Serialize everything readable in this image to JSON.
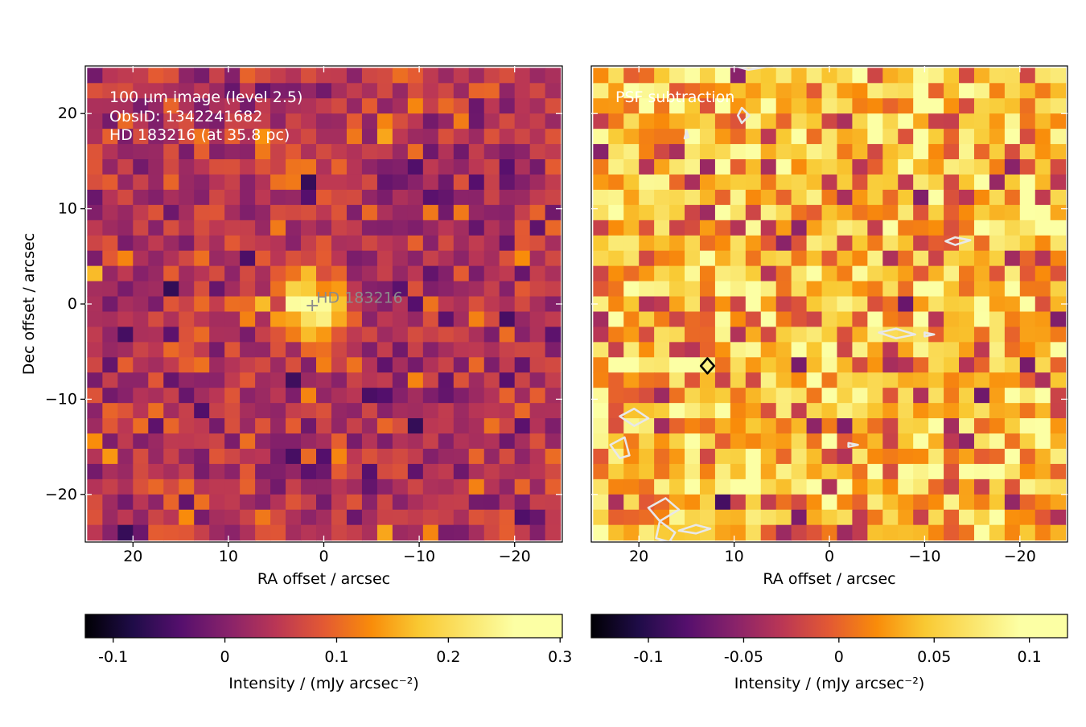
{
  "chart_data": [
    {
      "type": "heatmap",
      "panel": "left",
      "annotation": [
        "100 µm image (level 2.5)",
        "ObsID: 1342241682",
        "HD 183216 (at 35.8 pc)"
      ],
      "marker": {
        "label": "HD 183216",
        "ra": 1.2,
        "dec": -0.2
      },
      "xlabel": "RA offset / arcsec",
      "ylabel": "Dec offset / arcsec",
      "xlim": [
        25,
        -25
      ],
      "ylim": [
        -25,
        25
      ],
      "xticks": [
        20,
        10,
        0,
        -10,
        -20
      ],
      "xticklabels": [
        "20",
        "10",
        "0",
        "−10",
        "−20"
      ],
      "yticks": [
        20,
        10,
        0,
        -10,
        -20
      ],
      "yticklabels": [
        "20",
        "10",
        "0",
        "−10",
        "−20"
      ],
      "grid": {
        "nx": 31,
        "ny": 31,
        "pixel_arcsec": 1.6,
        "source_peak": 0.25,
        "source_width_arcsec": 2.2,
        "noise_level": 0.04,
        "background": 0.04
      },
      "colorbar": {
        "label": "Intensity / (mJy arcsec⁻²)",
        "range": [
          -0.125,
          0.302
        ],
        "ticks": [
          -0.1,
          0,
          0.1,
          0.2,
          0.3
        ],
        "ticklabels": [
          "-0.1",
          "0",
          "0.1",
          "0.2",
          "0.3"
        ],
        "colormap": "inferno"
      }
    },
    {
      "type": "heatmap",
      "panel": "right",
      "annotation": [
        "PSF subtraction"
      ],
      "xlabel": "RA offset / arcsec",
      "xlim": [
        25,
        -25
      ],
      "ylim": [
        -25,
        25
      ],
      "xticks": [
        20,
        10,
        0,
        -10,
        -20
      ],
      "xticklabels": [
        "20",
        "10",
        "0",
        "−10",
        "−20"
      ],
      "grid": {
        "nx": 31,
        "ny": 31,
        "pixel_arcsec": 1.6,
        "noise_level": 0.04,
        "background": 0.035
      },
      "contours": [
        {
          "color": "#000000",
          "points": [
            [
              13.5,
              -6.5
            ],
            [
              12.8,
              -5.7
            ],
            [
              12.1,
              -6.5
            ],
            [
              12.8,
              -7.3
            ]
          ]
        },
        {
          "color": "#e8e8ea",
          "points": [
            [
              9.6,
              19.8
            ],
            [
              9.2,
              20.6
            ],
            [
              8.4,
              19.8
            ],
            [
              9.2,
              19.0
            ]
          ]
        },
        {
          "color": "#e8e8ea",
          "points": [
            [
              -5.2,
              -3.0
            ],
            [
              -7.0,
              -2.6
            ],
            [
              -9.0,
              -3.2
            ],
            [
              -7.0,
              -3.6
            ]
          ]
        },
        {
          "color": "#e8e8ea",
          "points": [
            [
              -12.2,
              6.6
            ],
            [
              -13.2,
              7.0
            ],
            [
              -14.8,
              6.7
            ],
            [
              -13.2,
              6.2
            ]
          ]
        },
        {
          "color": "#e8e8ea",
          "points": [
            [
              22.0,
              -11.8
            ],
            [
              20.5,
              -11.0
            ],
            [
              19.0,
              -12.0
            ],
            [
              20.5,
              -12.8
            ]
          ]
        },
        {
          "color": "#e8e8ea",
          "points": [
            [
              23.0,
              -14.8
            ],
            [
              21.5,
              -14.0
            ],
            [
              21.0,
              -15.9
            ],
            [
              22.0,
              -16.2
            ]
          ]
        },
        {
          "color": "#e8e8ea",
          "points": [
            [
              19.0,
              -21.4
            ],
            [
              17.2,
              -20.4
            ],
            [
              15.8,
              -21.6
            ],
            [
              17.8,
              -22.8
            ]
          ]
        },
        {
          "color": "#e8e8ea",
          "points": [
            [
              17.8,
              -22.8
            ],
            [
              18.2,
              -24.6
            ],
            [
              16.8,
              -25.0
            ],
            [
              16.2,
              -24.0
            ]
          ]
        },
        {
          "color": "#e8e8ea",
          "points": [
            [
              15.8,
              -23.8
            ],
            [
              14.0,
              -23.2
            ],
            [
              12.5,
              -23.6
            ],
            [
              14.0,
              -24.1
            ]
          ]
        },
        {
          "color": "#e8e8ea",
          "points": [
            [
              10.0,
              25.0
            ],
            [
              8.5,
              24.6
            ],
            [
              6.0,
              25.0
            ]
          ]
        },
        {
          "color": "#e8e8ea",
          "points": [
            [
              15.0,
              18.2
            ],
            [
              14.8,
              17.5
            ],
            [
              15.2,
              17.4
            ]
          ]
        },
        {
          "color": "#e8e8ea",
          "points": [
            [
              -2.0,
              -14.6
            ],
            [
              -3.0,
              -14.8
            ],
            [
              -2.0,
              -15.0
            ]
          ]
        },
        {
          "color": "#e8e8ea",
          "points": [
            [
              -10.0,
              -3.0
            ],
            [
              -11.0,
              -3.2
            ],
            [
              -10.0,
              -3.4
            ]
          ]
        }
      ],
      "colorbar": {
        "label": "Intensity / (mJy arcsec⁻²)",
        "range": [
          -0.13,
          0.12
        ],
        "ticks": [
          -0.1,
          -0.05,
          0,
          0.05,
          0.1
        ],
        "ticklabels": [
          "-0.1",
          "-0.05",
          "0",
          "0.05",
          "0.1"
        ],
        "colormap": "inferno"
      }
    }
  ]
}
